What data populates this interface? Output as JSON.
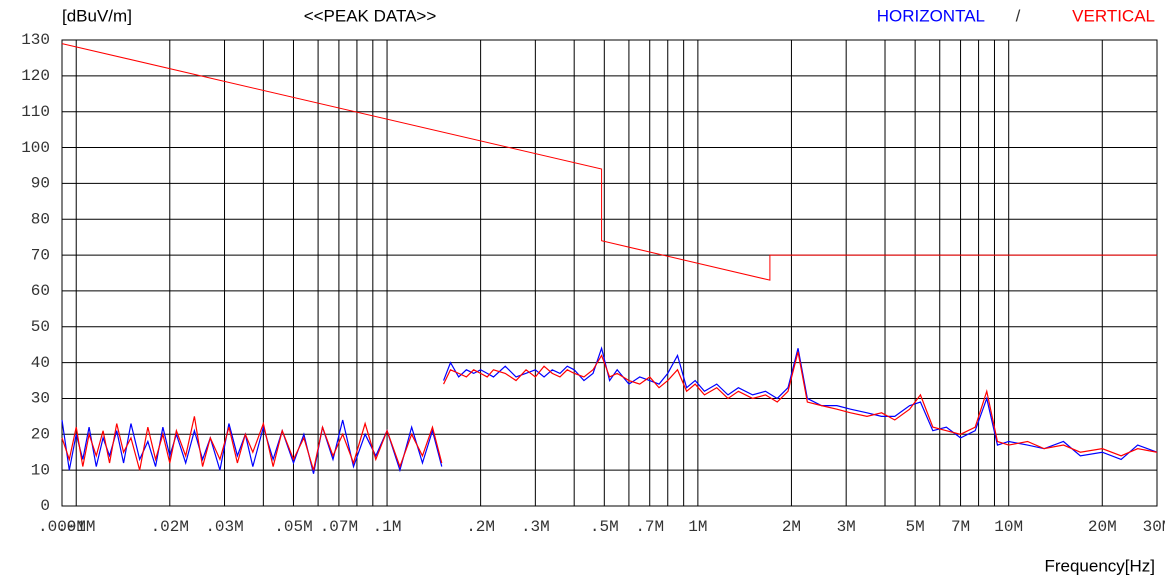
{
  "chart_data": {
    "type": "line",
    "title": "<<PEAK DATA>>",
    "y_label": "[dBuV/m]",
    "x_label": "Frequency[Hz]",
    "legend_separator": "/",
    "xscale": "log",
    "xlim": [
      0.009,
      30
    ],
    "xticks": [
      {
        "value": 0.009,
        "label": ".009M"
      },
      {
        "value": 0.01,
        "label": ".01M"
      },
      {
        "value": 0.02,
        "label": ".02M"
      },
      {
        "value": 0.03,
        "label": ".03M"
      },
      {
        "value": 0.05,
        "label": ".05M"
      },
      {
        "value": 0.07,
        "label": ".07M"
      },
      {
        "value": 0.1,
        "label": ".1M"
      },
      {
        "value": 0.2,
        "label": ".2M"
      },
      {
        "value": 0.3,
        "label": ".3M"
      },
      {
        "value": 0.5,
        "label": ".5M"
      },
      {
        "value": 0.7,
        "label": ".7M"
      },
      {
        "value": 1,
        "label": "1M"
      },
      {
        "value": 2,
        "label": "2M"
      },
      {
        "value": 3,
        "label": "3M"
      },
      {
        "value": 5,
        "label": "5M"
      },
      {
        "value": 7,
        "label": "7M"
      },
      {
        "value": 10,
        "label": "10M"
      },
      {
        "value": 20,
        "label": "20M"
      },
      {
        "value": 30,
        "label": "30M"
      }
    ],
    "xgrid": [
      0.01,
      0.02,
      0.03,
      0.04,
      0.05,
      0.06,
      0.07,
      0.08,
      0.09,
      0.1,
      0.2,
      0.3,
      0.4,
      0.5,
      0.6,
      0.7,
      0.8,
      0.9,
      1,
      2,
      3,
      4,
      5,
      6,
      7,
      8,
      9,
      10,
      20
    ],
    "ylim": [
      0,
      130
    ],
    "yticks": [
      0,
      10,
      20,
      30,
      40,
      50,
      60,
      70,
      80,
      90,
      100,
      110,
      120,
      130
    ],
    "grid": true,
    "limit": {
      "color": "#ff0000",
      "x": [
        0.009,
        0.49,
        0.49,
        1.705,
        1.705,
        30
      ],
      "values": [
        129,
        94,
        74,
        63,
        70,
        70
      ]
    },
    "x": [
      0.009,
      0.0095,
      0.01,
      0.0105,
      0.011,
      0.0116,
      0.0122,
      0.0128,
      0.0135,
      0.0142,
      0.015,
      0.016,
      0.017,
      0.018,
      0.019,
      0.02,
      0.021,
      0.0225,
      0.024,
      0.0255,
      0.027,
      0.029,
      0.031,
      0.033,
      0.035,
      0.037,
      0.04,
      0.043,
      0.046,
      0.05,
      0.054,
      0.058,
      0.062,
      0.067,
      0.072,
      0.078,
      0.085,
      0.092,
      0.1,
      0.11,
      0.12,
      0.13,
      0.14,
      0.15,
      0.151,
      0.152,
      0.16,
      0.17,
      0.18,
      0.19,
      0.2,
      0.21,
      0.22,
      0.24,
      0.26,
      0.28,
      0.3,
      0.32,
      0.34,
      0.36,
      0.38,
      0.4,
      0.43,
      0.46,
      0.49,
      0.52,
      0.55,
      0.6,
      0.65,
      0.7,
      0.75,
      0.8,
      0.86,
      0.92,
      0.98,
      1.05,
      1.15,
      1.25,
      1.35,
      1.5,
      1.65,
      1.8,
      1.95,
      2.1,
      2.25,
      2.5,
      2.8,
      3.1,
      3.5,
      3.9,
      4.3,
      4.8,
      5.2,
      5.7,
      6.3,
      7,
      7.8,
      8.5,
      9.2,
      10,
      11.5,
      13,
      15,
      17,
      20,
      23,
      26,
      30
    ],
    "series": [
      {
        "name": "HORIZONTAL",
        "color": "#0000ff",
        "values": [
          24,
          10,
          20,
          13,
          22,
          11,
          19,
          14,
          21,
          12,
          23,
          13,
          18,
          11,
          22,
          14,
          20,
          12,
          21,
          13,
          19,
          10,
          23,
          14,
          20,
          11,
          22,
          13,
          21,
          12,
          20,
          9,
          22,
          13,
          24,
          11,
          20,
          14,
          21,
          10,
          22,
          12,
          21,
          11,
          null,
          35,
          40,
          36,
          38,
          37,
          38,
          37,
          36,
          39,
          36,
          37,
          38,
          36,
          38,
          37,
          39,
          38,
          35,
          37,
          44,
          35,
          38,
          34,
          36,
          35,
          34,
          37,
          42,
          33,
          35,
          32,
          34,
          31,
          33,
          31,
          32,
          30,
          33,
          44,
          30,
          28,
          28,
          27,
          26,
          25,
          25,
          28,
          29,
          21,
          22,
          19,
          21,
          30,
          17,
          18,
          17,
          16,
          18,
          14,
          15,
          13,
          17,
          15
        ]
      },
      {
        "name": "VERTICAL",
        "color": "#ff0000",
        "values": [
          19,
          13,
          22,
          11,
          20,
          14,
          21,
          12,
          23,
          15,
          19,
          10,
          22,
          13,
          20,
          12,
          21,
          14,
          25,
          11,
          19,
          13,
          22,
          12,
          20,
          15,
          23,
          11,
          21,
          13,
          19,
          10,
          22,
          14,
          20,
          12,
          23,
          13,
          21,
          11,
          20,
          14,
          22,
          12,
          null,
          34,
          38,
          37,
          36,
          38,
          37,
          36,
          38,
          37,
          35,
          38,
          36,
          39,
          37,
          36,
          38,
          37,
          36,
          38,
          42,
          36,
          37,
          35,
          34,
          36,
          33,
          35,
          38,
          32,
          34,
          31,
          33,
          30,
          32,
          30,
          31,
          29,
          32,
          43,
          29,
          28,
          27,
          26,
          25,
          26,
          24,
          27,
          31,
          22,
          21,
          20,
          22,
          32,
          18,
          17,
          18,
          16,
          17,
          15,
          16,
          14,
          16,
          15
        ]
      }
    ]
  }
}
